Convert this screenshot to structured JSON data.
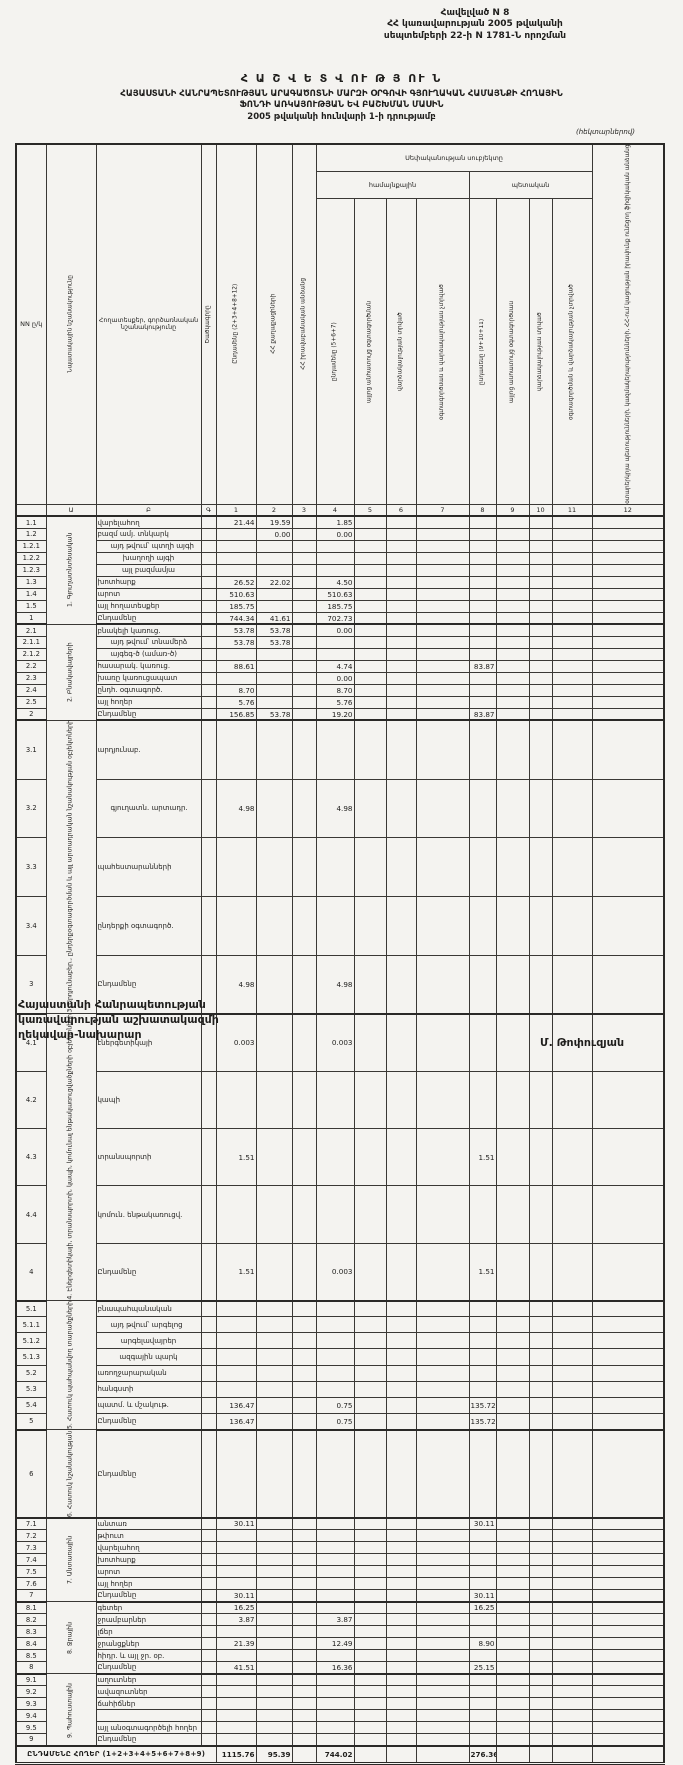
{
  "page": {
    "appendix_line1": "Հավելված N 8",
    "appendix_line2": "ՀՀ կառավարության 2005 թվականի",
    "appendix_line3": "սեպտեմբերի 22-ի N 1781-Ն որոշման",
    "title1": "Հ Ա Շ Վ Ե Տ Վ ՈՒ Թ Յ ՈՒ Ն",
    "title2": "ՀԱՅԱՍՏԱՆԻ ՀԱՆՐԱՊԵՏՈՒԹՅԱՆ ԱՐԱԳԱԾՈՏՆԻ ՄԱՐԶԻ ՕՐԳՈՎԻ ԳՅՈՒՂԱԿԱՆ ՀԱՄԱՅՆՔԻ ՀՈՂԱՅԻՆ",
    "title3": "ՖՈՆԴԻ ԱՌԿԱՅՈՒԹՅԱՆ ԵՎ ԲԱՇԽՄԱՆ ՄԱՍԻՆ",
    "title4": "2005 թվականի հունվարի 1-ի դրությամբ",
    "units_note": "(հեկտարներով)",
    "colors": {
      "paper": "#f4f3f0",
      "ink": "#1f1e1c"
    }
  },
  "table": {
    "header": {
      "nn": "NN ը/կ",
      "purpose": "Նպատակային նշանակությունը",
      "land": "Հողատեսքեր, գործառնական նշանակությունը",
      "code": "Ծածկագիրը",
      "c1": "Ընդամենը (2+3+4+8+12)",
      "c2": "ՀՀ քաղաքացիների",
      "c3": "ՀՀ իրավաբանական անձանց",
      "ownership_span": "Սեփականության սուբյեկտը",
      "community_span": "համայնքային",
      "state_span": "պետական",
      "c4": "ընդամենը (5+6+7)",
      "c5": "այլոց անհատույց օգտագործման",
      "c6": "վարձակալության տրված",
      "c7": "օգտագործման և վարձակալության չտրված",
      "c8": "ընդամենը (9+10+11)",
      "c9": "այլոց անհատույց օգտագործման",
      "c10": "վարձակալության տրված",
      "c11": "օգտագործման և վարձակալության չտրված",
      "c12": "օտարերկրյա պետությունների, կազմակերպությունների, ՀՀ-ում կացության իրավունք ունեցող ֆիզիկական անձանց",
      "letters": [
        "",
        "Ա",
        "Բ",
        "Գ",
        "1",
        "2",
        "3",
        "4",
        "5",
        "6",
        "7",
        "8",
        "9",
        "10",
        "11",
        "12"
      ]
    },
    "sections": [
      {
        "label": "1. Գյուղատնտեսական",
        "rows": [
          {
            "nn": "1.1",
            "label": "վարելահող",
            "vals": {
              "1": "21.44",
              "2": "19.59",
              "4": "1.85"
            }
          },
          {
            "nn": "1.2",
            "label": "բազմ ամյ. տնկարկ",
            "vals": {
              "2": "0.00",
              "4": "0.00"
            }
          },
          {
            "nn": "1.2.1",
            "label": "այդ թվում՝ պտղի այգի",
            "indent": 1
          },
          {
            "nn": "1.2.2",
            "label": "խաղողի այգի",
            "indent": 2
          },
          {
            "nn": "1.2.3",
            "label": "այլ բազմամյա",
            "indent": 2
          },
          {
            "nn": "1.3",
            "label": "խոտհարք",
            "vals": {
              "1": "26.52",
              "2": "22.02",
              "4": "4.50"
            }
          },
          {
            "nn": "1.4",
            "label": "արոտ",
            "vals": {
              "1": "510.63",
              "4": "510.63"
            }
          },
          {
            "nn": "1.5",
            "label": "այլ հողատեսքեր",
            "vals": {
              "1": "185.75",
              "4": "185.75"
            }
          },
          {
            "nn": "1",
            "label": "Ընդամենը",
            "total": true,
            "vals": {
              "1": "744.34",
              "2": "41.61",
              "4": "702.73"
            }
          }
        ]
      },
      {
        "label": "2. Բնակավայրերի",
        "rows": [
          {
            "nn": "2.1",
            "label": "բնակելի կառուց.",
            "vals": {
              "1": "53.78",
              "2": "53.78",
              "4": "0.00"
            }
          },
          {
            "nn": "2.1.1",
            "label": "այդ թվում՝ տնամերձ",
            "indent": 1,
            "vals": {
              "1": "53.78",
              "2": "53.78"
            }
          },
          {
            "nn": "2.1.2",
            "label": "այգեգ-ծ (ամառ-ծ)",
            "indent": 1
          },
          {
            "nn": "2.2",
            "label": "հասարակ. կառուց.",
            "vals": {
              "1": "88.61",
              "4": "4.74",
              "8": "83.87"
            }
          },
          {
            "nn": "2.3",
            "label": "խառը կառուցապատ",
            "vals": {
              "4": "0.00"
            }
          },
          {
            "nn": "2.4",
            "label": "ընդհ. օգտագործ.",
            "vals": {
              "1": "8.70",
              "4": "8.70"
            }
          },
          {
            "nn": "2.5",
            "label": "այլ հողեր",
            "vals": {
              "1": "5.76",
              "4": "5.76"
            }
          },
          {
            "nn": "2",
            "label": "Ընդամենը",
            "total": true,
            "vals": {
              "1": "156.85",
              "2": "53.78",
              "4": "19.20",
              "8": "83.87"
            }
          }
        ]
      },
      {
        "label": "3. Արդյունաբեր., ընդերքօգտագործման և այլ արտադրական նշանակության օբյեկտների",
        "rows": [
          {
            "nn": "3.1",
            "label": "արդյունաբ."
          },
          {
            "nn": "3.2",
            "label": "գյուղատն. արտադր.",
            "indent": 1,
            "vals": {
              "1": "4.98",
              "4": "4.98"
            }
          },
          {
            "nn": "3.3",
            "label": "պահեստարանների"
          },
          {
            "nn": "3.4",
            "label": "ընդերքի օգտագործ."
          },
          {
            "nn": "3",
            "label": "Ընդամենը",
            "total": true,
            "vals": {
              "1": "4.98",
              "4": "4.98"
            }
          }
        ]
      },
      {
        "label": "4. Էներգետիկայի, տրանսպորտի, կապի, կոմունալ ենթակառուցվածքների օբյեկտների",
        "rows": [
          {
            "nn": "4.1",
            "label": "էներգետիկայի",
            "vals": {
              "1": "0.003",
              "4": "0.003"
            }
          },
          {
            "nn": "4.2",
            "label": "կապի"
          },
          {
            "nn": "4.3",
            "label": "տրանսպորտի",
            "vals": {
              "1": "1.51",
              "8": "1.51"
            }
          },
          {
            "nn": "4.4",
            "label": "կոմուն. ենթակառուցվ."
          },
          {
            "nn": "4",
            "label": "Ընդամենը",
            "total": true,
            "vals": {
              "1": "1.51",
              "4": "0.003",
              "8": "1.51"
            }
          }
        ]
      },
      {
        "label": "5. Հատուկ պահպանվող տարածքների",
        "rows": [
          {
            "nn": "5.1",
            "label": "բնապահպանական"
          },
          {
            "nn": "5.1.1",
            "label": "այդ թվում՝ արգելոց",
            "indent": 1
          },
          {
            "nn": "5.1.2",
            "label": "արգելավայրեր",
            "indent": 2
          },
          {
            "nn": "5.1.3",
            "label": "ազգային պարկ",
            "indent": 2
          },
          {
            "nn": "5.2",
            "label": "առողջարարական"
          },
          {
            "nn": "5.3",
            "label": "հանգստի"
          },
          {
            "nn": "5.4",
            "label": "պատմ. և մշակութ.",
            "vals": {
              "1": "136.47",
              "4": "0.75",
              "8": "135.72"
            }
          },
          {
            "nn": "5",
            "label": "Ընդամենը",
            "total": true,
            "vals": {
              "1": "136.47",
              "4": "0.75",
              "8": "135.72"
            }
          }
        ]
      },
      {
        "label": "6. Հատուկ նշանակության",
        "rows": [
          {
            "nn": "6",
            "label": "Ընդամենը",
            "total": true,
            "tall": true
          }
        ]
      },
      {
        "label": "7. Անտառային",
        "rows": [
          {
            "nn": "7.1",
            "label": "անտառ",
            "vals": {
              "1": "30.11",
              "8": "30.11"
            }
          },
          {
            "nn": "7.2",
            "label": "թփուտ"
          },
          {
            "nn": "7.3",
            "label": "վարելահող"
          },
          {
            "nn": "7.4",
            "label": "խոտհարք"
          },
          {
            "nn": "7.5",
            "label": "արոտ"
          },
          {
            "nn": "7.6",
            "label": "այլ հողեր"
          },
          {
            "nn": "7",
            "label": "Ընդամենը",
            "total": true,
            "vals": {
              "1": "30.11",
              "8": "30.11"
            }
          }
        ]
      },
      {
        "label": "8. Ջրային",
        "rows": [
          {
            "nn": "8.1",
            "label": "գետեր",
            "vals": {
              "1": "16.25",
              "8": "16.25"
            }
          },
          {
            "nn": "8.2",
            "label": "ջրամբարներ",
            "vals": {
              "1": "3.87",
              "4": "3.87"
            }
          },
          {
            "nn": "8.3",
            "label": "լճեր"
          },
          {
            "nn": "8.4",
            "label": "ջրանցքներ",
            "vals": {
              "1": "21.39",
              "4": "12.49",
              "8": "8.90"
            }
          },
          {
            "nn": "8.5",
            "label": "հիդր. և այլ ջր. օբ."
          },
          {
            "nn": "8",
            "label": "Ընդամենը",
            "total": true,
            "vals": {
              "1": "41.51",
              "4": "16.36",
              "8": "25.15"
            }
          }
        ]
      },
      {
        "label": "9. Պահուստային",
        "rows": [
          {
            "nn": "9.1",
            "label": "աղուտներ"
          },
          {
            "nn": "9.2",
            "label": "ավազուտներ"
          },
          {
            "nn": "9.3",
            "label": "ճահիճներ"
          },
          {
            "nn": "9.4",
            "label": ""
          },
          {
            "nn": "9.5",
            "label": "այլ անօգտագործելի հողեր"
          },
          {
            "nn": "9",
            "label": "Ընդամենը",
            "total": true
          }
        ]
      }
    ],
    "total_row": {
      "label": "ԸՆԴԱՄԵՆԸ ՀՈՂԵՐ (1+2+3+4+5+6+7+8+9)",
      "vals": {
        "1": "1115.76",
        "2": "95.39",
        "4": "744.02",
        "8": "276.36"
      }
    }
  },
  "footer": {
    "line1": "Հայաստանի Հանրապետության",
    "line2": "կառավարության աշխատակազմի",
    "line3": "ղեկավար-նախարար",
    "signature": "Մ. Թոփուզյան"
  }
}
